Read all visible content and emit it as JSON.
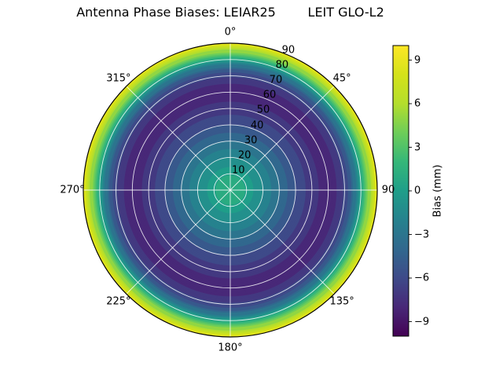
{
  "title": "Antenna Phase Biases: LEIAR25        LEIT GLO-L2",
  "chart_data": {
    "type": "heatmap",
    "projection": "polar",
    "title": "Antenna Phase Biases: LEIAR25        LEIT GLO-L2",
    "colormap": "viridis",
    "vmin": -10,
    "vmax": 10,
    "band_step_mm": 1,
    "theta_tick_labels": [
      "0°",
      "45°",
      "90",
      "135°",
      "180°",
      "225°",
      "270°",
      "315°"
    ],
    "theta_tick_degrees": [
      0,
      45,
      90,
      135,
      180,
      225,
      270,
      315
    ],
    "radial_tick_values": [
      10,
      20,
      30,
      40,
      50,
      60,
      70,
      80,
      90
    ],
    "radial_tick_labels": [
      "10",
      "20",
      "30",
      "40",
      "50",
      "60",
      "70",
      "80",
      "90"
    ],
    "radial_label_angle_deg": 22.5,
    "radial_max": 90,
    "grid_circle_radii": [
      10,
      20,
      30,
      40,
      50,
      60,
      70,
      80
    ],
    "profile": {
      "zenith_deg": [
        0,
        5,
        10,
        15,
        20,
        25,
        30,
        35,
        40,
        45,
        50,
        55,
        60,
        65,
        70,
        75,
        80,
        85,
        90
      ],
      "bias_mm": [
        1.4,
        1.0,
        0.3,
        -0.6,
        -1.6,
        -2.6,
        -3.6,
        -4.6,
        -5.5,
        -6.3,
        -7.0,
        -7.6,
        -7.9,
        -7.6,
        -6.3,
        -3.8,
        0.2,
        5.0,
        9.8
      ]
    },
    "colorbar": {
      "label": "Bias (mm)",
      "tick_labels": [
        "9",
        "6",
        "3",
        "0",
        "−3",
        "−6",
        "−9"
      ],
      "tick_values": [
        9,
        6,
        3,
        0,
        -3,
        -6,
        -9
      ]
    },
    "colormap_stops": [
      [
        0.0,
        [
          68,
          1,
          84
        ]
      ],
      [
        0.1,
        [
          72,
          40,
          120
        ]
      ],
      [
        0.2,
        [
          62,
          74,
          137
        ]
      ],
      [
        0.3,
        [
          49,
          104,
          142
        ]
      ],
      [
        0.4,
        [
          38,
          130,
          142
        ]
      ],
      [
        0.5,
        [
          31,
          158,
          137
        ]
      ],
      [
        0.6,
        [
          53,
          183,
          121
        ]
      ],
      [
        0.7,
        [
          109,
          205,
          89
        ]
      ],
      [
        0.8,
        [
          180,
          222,
          44
        ]
      ],
      [
        0.9,
        [
          212,
          226,
          26
        ]
      ],
      [
        1.0,
        [
          253,
          231,
          37
        ]
      ]
    ],
    "colors": {
      "background": "#ffffff",
      "grid": "rgba(255,255,255,0.85)",
      "spine": "#000000",
      "text": "#000000"
    }
  }
}
